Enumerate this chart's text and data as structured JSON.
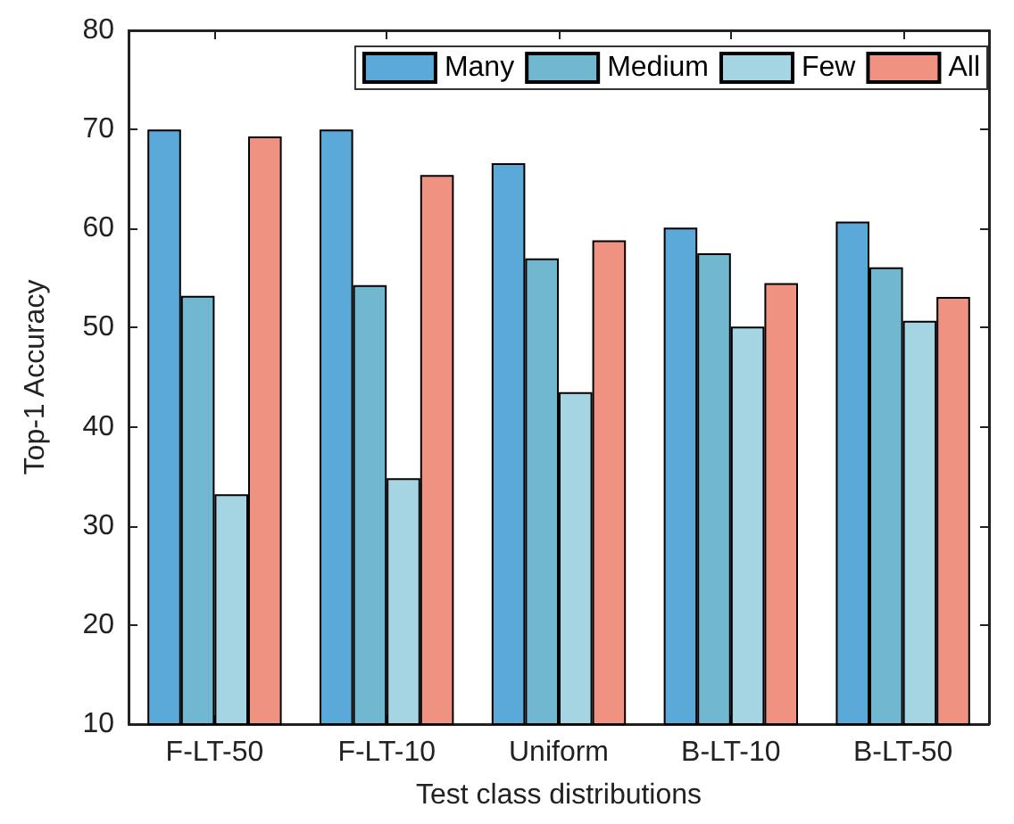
{
  "chart_data": {
    "type": "bar",
    "xlabel": "Test class distributions",
    "ylabel": "Top-1 Accuracy",
    "categories": [
      "F-LT-50",
      "F-LT-10",
      "Uniform",
      "B-LT-10",
      "B-LT-50"
    ],
    "series": [
      {
        "name": "Many",
        "color": "#5aa9d9",
        "values": [
          70.0,
          70.0,
          66.6,
          60.1,
          60.7
        ]
      },
      {
        "name": "Medium",
        "color": "#72b7d0",
        "values": [
          53.2,
          54.3,
          57.0,
          57.5,
          56.1
        ]
      },
      {
        "name": "Few",
        "color": "#a5d4e3",
        "values": [
          33.2,
          34.8,
          43.5,
          50.1,
          50.7
        ]
      },
      {
        "name": "All",
        "color": "#f09282",
        "values": [
          69.3,
          65.4,
          58.8,
          54.5,
          53.1
        ]
      }
    ],
    "ylim": [
      10,
      80
    ],
    "yticks": [
      10,
      20,
      30,
      40,
      50,
      60,
      70,
      80
    ],
    "grid": false,
    "legend": "top right"
  }
}
